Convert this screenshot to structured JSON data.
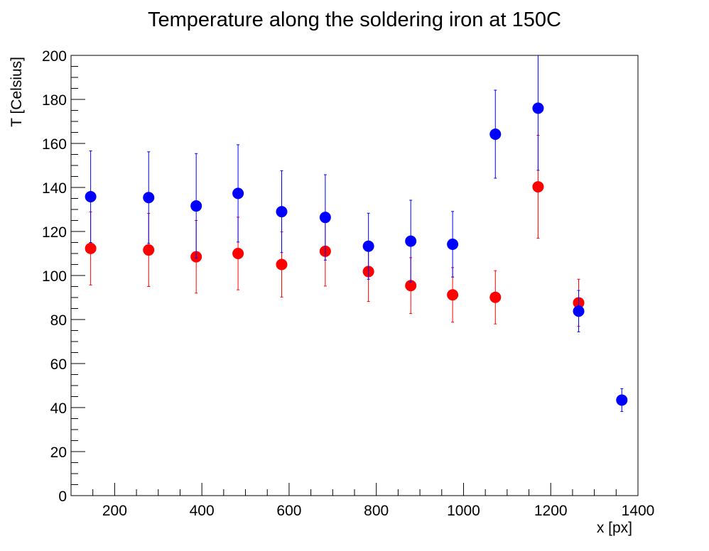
{
  "chart_data": {
    "type": "scatter",
    "title": "Temperature along the soldering iron at 150C",
    "xlabel": "x [px]",
    "ylabel": "T [Celsius]",
    "xlim": [
      100,
      1400
    ],
    "ylim": [
      0,
      200
    ],
    "x_ticks": [
      200,
      400,
      600,
      800,
      1000,
      1200,
      1400
    ],
    "y_ticks": [
      0,
      20,
      40,
      60,
      80,
      100,
      120,
      140,
      160,
      180,
      200
    ],
    "grid": false,
    "legend": "none",
    "series": [
      {
        "color": "#0000ff",
        "points": [
          {
            "x": 145,
            "y": 135.8,
            "err": 20.8
          },
          {
            "x": 278,
            "y": 135.4,
            "err": 20.8
          },
          {
            "x": 387,
            "y": 131.6,
            "err": 23.8
          },
          {
            "x": 483,
            "y": 137.3,
            "err": 22.1
          },
          {
            "x": 583,
            "y": 129.0,
            "err": 18.6
          },
          {
            "x": 683,
            "y": 126.4,
            "err": 19.4
          },
          {
            "x": 782,
            "y": 113.3,
            "err": 15.0
          },
          {
            "x": 879,
            "y": 115.6,
            "err": 18.6
          },
          {
            "x": 975,
            "y": 114.2,
            "err": 14.9
          },
          {
            "x": 1073,
            "y": 164.2,
            "err": 20.0
          },
          {
            "x": 1171,
            "y": 176.0,
            "err": 28.2
          },
          {
            "x": 1264,
            "y": 83.8,
            "err": 9.4
          },
          {
            "x": 1363,
            "y": 43.4,
            "err": 5.2
          }
        ]
      },
      {
        "color": "#ff0000",
        "points": [
          {
            "x": 145,
            "y": 112.3,
            "err": 16.6
          },
          {
            "x": 278,
            "y": 111.6,
            "err": 16.6
          },
          {
            "x": 387,
            "y": 108.5,
            "err": 16.5
          },
          {
            "x": 483,
            "y": 110.0,
            "err": 16.5
          },
          {
            "x": 583,
            "y": 105.0,
            "err": 14.8
          },
          {
            "x": 683,
            "y": 111.0,
            "err": 15.8
          },
          {
            "x": 782,
            "y": 101.8,
            "err": 13.6
          },
          {
            "x": 879,
            "y": 95.4,
            "err": 12.7
          },
          {
            "x": 975,
            "y": 91.2,
            "err": 12.4
          },
          {
            "x": 1073,
            "y": 90.1,
            "err": 12.1
          },
          {
            "x": 1171,
            "y": 140.3,
            "err": 23.4
          },
          {
            "x": 1264,
            "y": 87.6,
            "err": 10.7
          }
        ]
      }
    ]
  }
}
